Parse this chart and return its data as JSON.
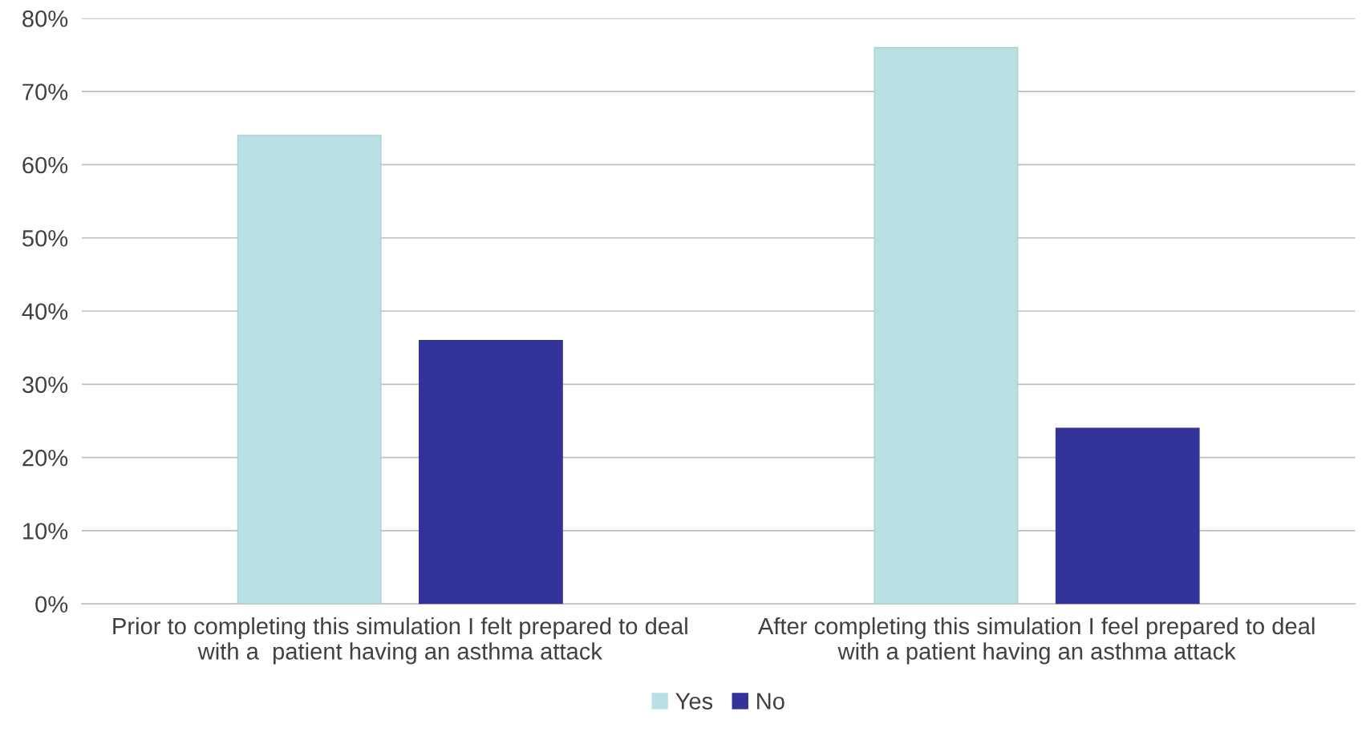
{
  "chart_data": {
    "type": "bar",
    "categories": [
      "Prior to completing this simulation I felt prepared to deal with a  patient having an asthma attack",
      "After completing this simulation I feel prepared to deal with a patient having an asthma attack"
    ],
    "series": [
      {
        "name": "Yes",
        "color": "#b9e0e3",
        "values": [
          64,
          76
        ]
      },
      {
        "name": "No",
        "color": "#333399",
        "values": [
          36,
          24
        ]
      }
    ],
    "ylim": [
      0,
      80
    ],
    "yticks": [
      {
        "value": 0,
        "label": "0%"
      },
      {
        "value": 10,
        "label": "10%"
      },
      {
        "value": 20,
        "label": "20%"
      },
      {
        "value": 30,
        "label": "30%"
      },
      {
        "value": 40,
        "label": "40%"
      },
      {
        "value": 50,
        "label": "50%"
      },
      {
        "value": 60,
        "label": "60%"
      },
      {
        "value": 70,
        "label": "70%"
      },
      {
        "value": 80,
        "label": "80%"
      }
    ],
    "grid": "y",
    "legend": "bottom"
  }
}
